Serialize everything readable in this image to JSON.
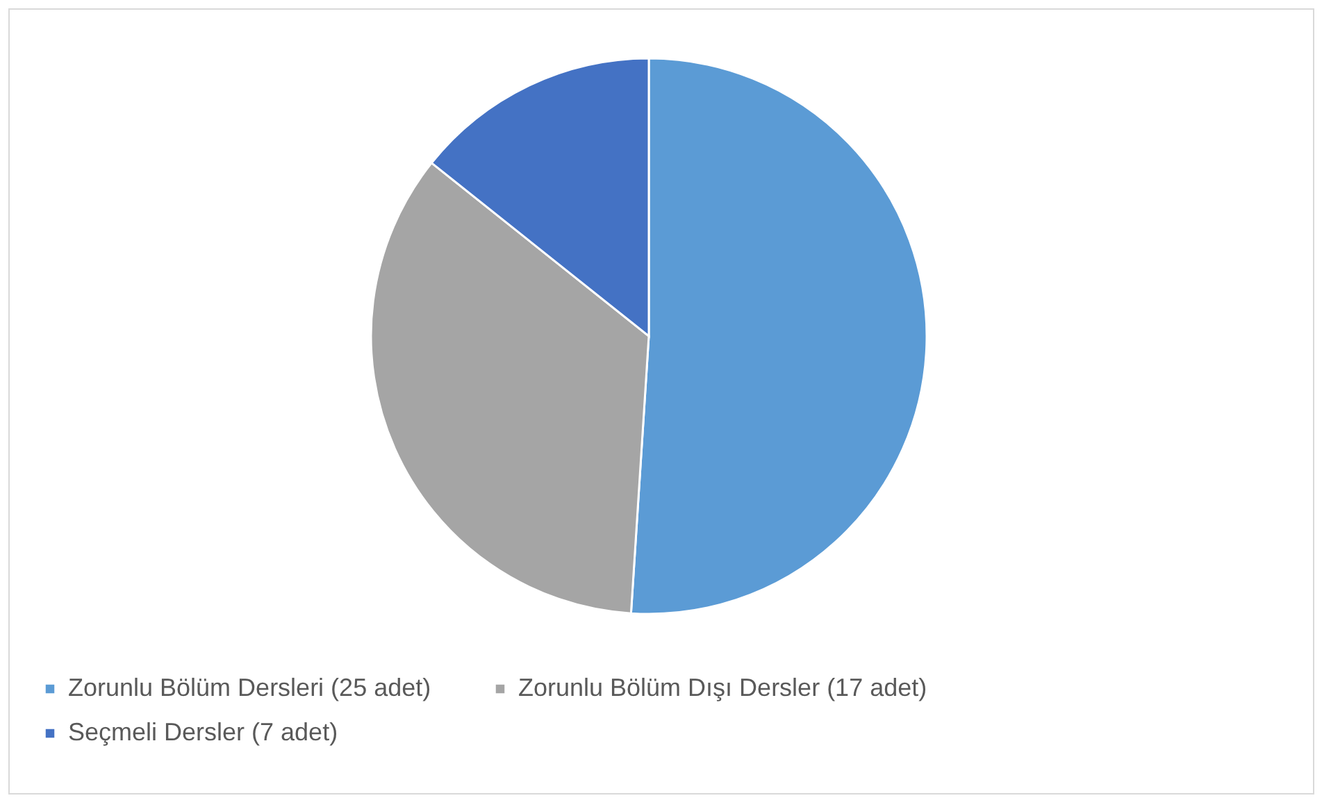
{
  "chart_data": {
    "type": "pie",
    "categories": [
      "Zorunlu Bölüm Dersleri (25 adet)",
      "Zorunlu Bölüm Dışı Dersler (17 adet)",
      "Seçmeli Dersler (7 adet)"
    ],
    "values": [
      25,
      17,
      7
    ],
    "colors": [
      "#5b9bd5",
      "#a5a5a5",
      "#4472c4"
    ],
    "legend": "bottom"
  }
}
